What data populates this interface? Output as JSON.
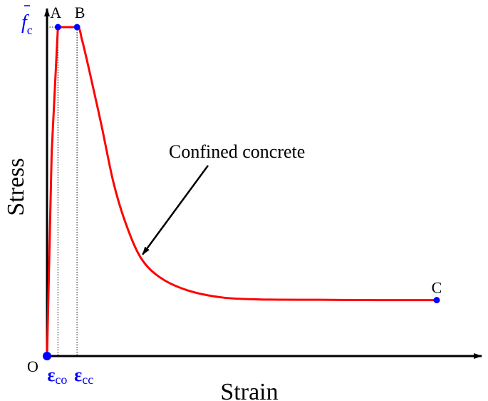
{
  "chart_data": {
    "type": "line",
    "title": "",
    "xlabel": "Strain",
    "ylabel": "Stress",
    "grid": false,
    "legend": "none",
    "series": [
      {
        "name": "",
        "color": "#ff0000",
        "points": [
          [
            0.0,
            0.0
          ],
          [
            0.012,
            0.62
          ],
          [
            0.028,
            1.0
          ],
          [
            0.077,
            1.0
          ],
          [
            0.09,
            0.96
          ],
          [
            0.11,
            0.86
          ],
          [
            0.14,
            0.7
          ],
          [
            0.17,
            0.53
          ],
          [
            0.2,
            0.41
          ],
          [
            0.24,
            0.3
          ],
          [
            0.29,
            0.239
          ],
          [
            0.36,
            0.2
          ],
          [
            0.45,
            0.178
          ],
          [
            0.55,
            0.172
          ],
          [
            0.7,
            0.171
          ],
          [
            0.85,
            0.17
          ],
          [
            1.0,
            0.17
          ]
        ]
      }
    ],
    "points_of_interest": [
      {
        "label": "O",
        "x": 0.0,
        "y": 0.0,
        "color": "#0000ff"
      },
      {
        "label": "A",
        "x": 0.028,
        "y": 1.0,
        "color": "#0000ff"
      },
      {
        "label": "B",
        "x": 0.077,
        "y": 1.0,
        "color": "#0000ff"
      },
      {
        "label": "C",
        "x": 1.0,
        "y": 0.17,
        "color": "#0000ff"
      }
    ],
    "xticks": [
      {
        "symbol": "ε",
        "sub": "co",
        "x": 0.028
      },
      {
        "symbol": "ε",
        "sub": "cc",
        "x": 0.077
      }
    ],
    "yticks": [
      {
        "symbol": "f",
        "sub": "c",
        "y": 1.0
      }
    ],
    "annotation": {
      "text": "Confined concrete",
      "arrow_to": [
        0.3,
        0.315
      ]
    },
    "tick_label_color": "#0000ff",
    "xlim": [
      0,
      1.1
    ],
    "ylim": [
      0,
      1.0
    ]
  }
}
